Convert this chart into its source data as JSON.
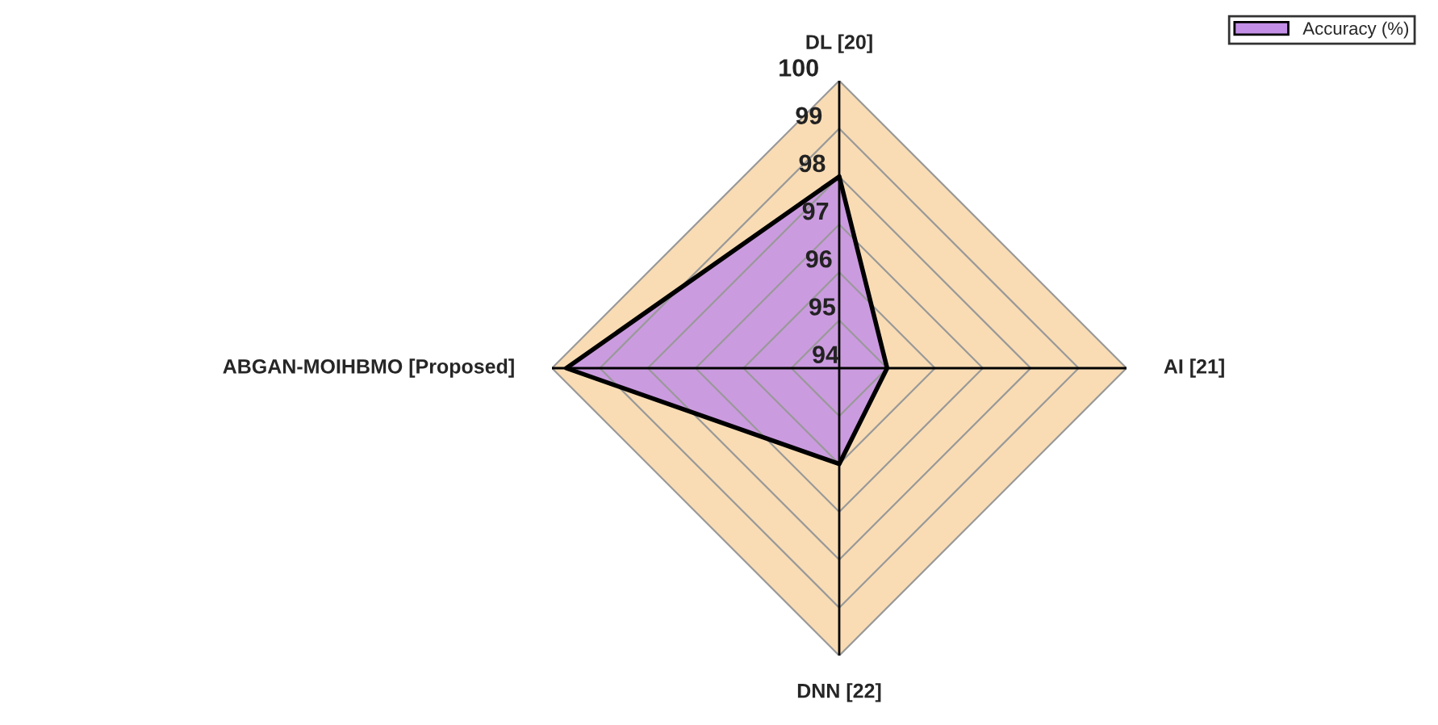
{
  "chart_data": {
    "type": "radar",
    "categories": [
      "DL [20]",
      "AI [21]",
      "DNN [22]",
      "ABGAN-MOIHBMO [Proposed]"
    ],
    "series": [
      {
        "name": "Accuracy (%)",
        "color": "#c38fe6",
        "values": [
          98,
          95,
          96,
          99.7
        ]
      }
    ],
    "ylim": [
      94,
      100
    ],
    "yticks": [
      94,
      95,
      96,
      97,
      98,
      99,
      100
    ],
    "legend": "top right"
  }
}
